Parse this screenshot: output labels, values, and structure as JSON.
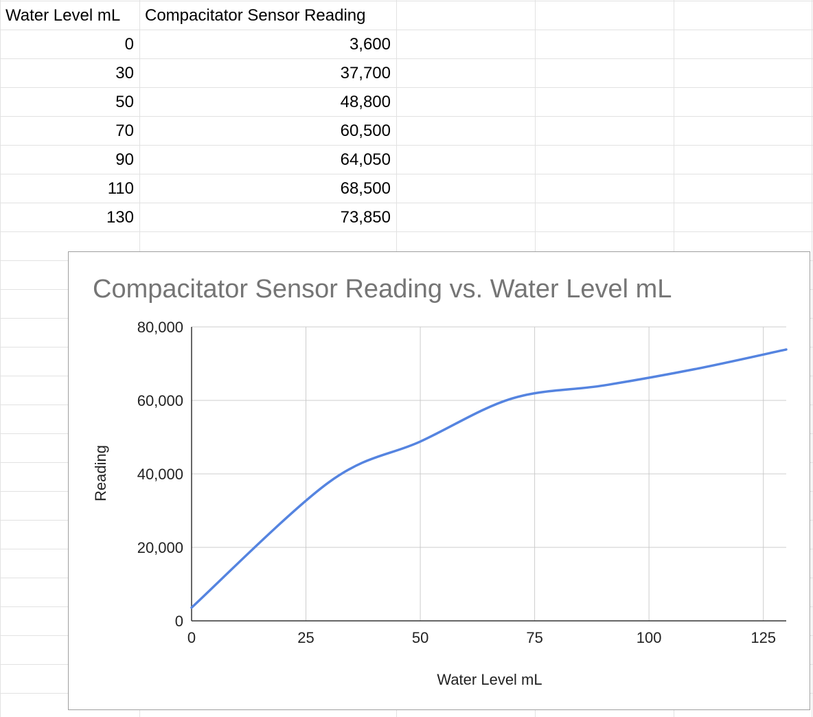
{
  "sheet": {
    "headers": [
      "Water Level mL",
      "Compacitator Sensor Reading"
    ],
    "rows": [
      [
        "0",
        "3,600"
      ],
      [
        "30",
        "37,700"
      ],
      [
        "50",
        "48,800"
      ],
      [
        "70",
        "60,500"
      ],
      [
        "90",
        "64,050"
      ],
      [
        "110",
        "68,500"
      ],
      [
        "130",
        "73,850"
      ]
    ]
  },
  "chart_data": {
    "type": "line",
    "title": "Compacitator Sensor Reading vs. Water Level mL",
    "xlabel": "Water Level mL",
    "ylabel": "Reading",
    "x": [
      0,
      30,
      50,
      70,
      90,
      110,
      130
    ],
    "series": [
      {
        "values": [
          3600,
          37700,
          48800,
          60500,
          64050,
          68500,
          73850
        ],
        "color": "#5584e0"
      }
    ],
    "xlim": [
      0,
      130
    ],
    "ylim": [
      0,
      80000
    ],
    "x_ticks": [
      "0",
      "25",
      "50",
      "75",
      "100",
      "125"
    ],
    "y_ticks": [
      "0",
      "20,000",
      "40,000",
      "60,000",
      "80,000"
    ],
    "grid": true,
    "smooth": true,
    "legend": "none"
  }
}
